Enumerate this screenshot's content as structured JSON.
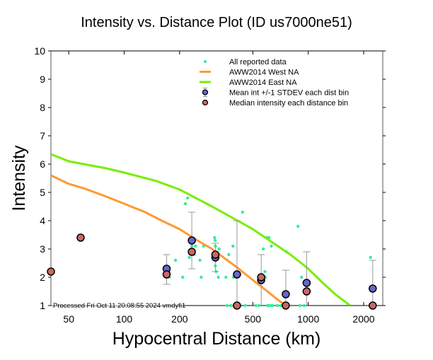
{
  "chart_data": {
    "type": "scatter",
    "title": "Intensity vs. Distance Plot (ID us7000ne51)",
    "xlabel": "Hypocentral Distance (km)",
    "ylabel": "Intensity",
    "xscale": "log",
    "xlim": [
      40,
      2540
    ],
    "ylim": [
      1,
      10
    ],
    "xticks": [
      50,
      100,
      200,
      500,
      1000,
      2000
    ],
    "xtick_labels": [
      "50",
      "100",
      "200",
      "500",
      "1000",
      "2000"
    ],
    "yticks": [
      1,
      2,
      3,
      4,
      5,
      6,
      7,
      8,
      9,
      10
    ],
    "ytick_labels": [
      "1",
      "2",
      "3",
      "4",
      "5",
      "6",
      "7",
      "8",
      "9",
      "10"
    ],
    "grid": false,
    "legend_position": "top-right",
    "annotation": "Processed Fri Oct 11 20:08:55 2024 vmdyfi1",
    "colors": {
      "all_data": "#33ee99",
      "west": "#ff9933",
      "east": "#77ee00",
      "mean": "#6666cc",
      "median": "#cc6666",
      "errorbar": "#999999"
    },
    "series": [
      {
        "name": "All reported data",
        "kind": "points",
        "points": [
          [
            58,
            3.4
          ],
          [
            175,
            2.2
          ],
          [
            176,
            2.0
          ],
          [
            190,
            2.6
          ],
          [
            208,
            2.0
          ],
          [
            215,
            4.6
          ],
          [
            221,
            4.8
          ],
          [
            226,
            2.7
          ],
          [
            233,
            3.1
          ],
          [
            240,
            2.8
          ],
          [
            244,
            3.1
          ],
          [
            258,
            2.6
          ],
          [
            262,
            2.0
          ],
          [
            270,
            3.1
          ],
          [
            310,
            3.4
          ],
          [
            312,
            3.3
          ],
          [
            313,
            3.1
          ],
          [
            313,
            2.6
          ],
          [
            313,
            2.4
          ],
          [
            316,
            2.2
          ],
          [
            316,
            2.8
          ],
          [
            325,
            2.0
          ],
          [
            328,
            3.0
          ],
          [
            357,
            2.0
          ],
          [
            362,
            1.0
          ],
          [
            370,
            2.8
          ],
          [
            380,
            1.0
          ],
          [
            390,
            3.1
          ],
          [
            392,
            2.0
          ],
          [
            408,
            2.0
          ],
          [
            414,
            1.0
          ],
          [
            440,
            4.3
          ],
          [
            455,
            1.0
          ],
          [
            520,
            1.0
          ],
          [
            540,
            1.0
          ],
          [
            557,
            2.0
          ],
          [
            567,
            2.0
          ],
          [
            570,
            3.0
          ],
          [
            582,
            2.2
          ],
          [
            585,
            2.0
          ],
          [
            597,
            3.4
          ],
          [
            600,
            1.0
          ],
          [
            610,
            1.0
          ],
          [
            612,
            3.4
          ],
          [
            626,
            1.0
          ],
          [
            630,
            3.1
          ],
          [
            640,
            1.0
          ],
          [
            680,
            1.0
          ],
          [
            710,
            1.0
          ],
          [
            752,
            1.0
          ],
          [
            760,
            2.9
          ],
          [
            780,
            1.0
          ],
          [
            880,
            3.8
          ],
          [
            900,
            1.0
          ],
          [
            920,
            2.0
          ],
          [
            950,
            1.0
          ],
          [
            2180,
            2.7
          ],
          [
            2240,
            1.0
          ]
        ]
      },
      {
        "name": "AWW2014 West NA",
        "kind": "line",
        "x": [
          40,
          50,
          60,
          80,
          100,
          130,
          160,
          200,
          250,
          300,
          400,
          500,
          600,
          700,
          760
        ],
        "y": [
          5.6,
          5.3,
          5.15,
          4.85,
          4.6,
          4.3,
          4.0,
          3.7,
          3.3,
          3.0,
          2.4,
          1.9,
          1.5,
          1.15,
          1.0
        ]
      },
      {
        "name": "AWW2014 East NA",
        "kind": "line",
        "x": [
          40,
          50,
          60,
          80,
          100,
          150,
          200,
          300,
          400,
          500,
          600,
          800,
          1000,
          1200,
          1400,
          1690
        ],
        "y": [
          6.35,
          6.1,
          6.0,
          5.85,
          5.7,
          5.4,
          5.1,
          4.5,
          4.05,
          3.7,
          3.35,
          2.8,
          2.3,
          1.8,
          1.4,
          1.0
        ]
      },
      {
        "name": "Mean int +/-1 STDEV each dist bin",
        "kind": "mean_with_errorbars",
        "x": [
          170,
          233,
          313,
          410,
          555,
          755,
          980,
          2240
        ],
        "y": [
          2.3,
          3.3,
          2.7,
          2.1,
          1.9,
          1.4,
          1.8,
          1.6
        ],
        "err_low": [
          1.75,
          2.3,
          2.2,
          1.0,
          1.0,
          1.0,
          1.0,
          1.0
        ],
        "err_high": [
          2.8,
          4.3,
          3.2,
          4.0,
          2.8,
          2.25,
          2.9,
          2.6
        ]
      },
      {
        "name": "Median intensity each distance bin",
        "kind": "median",
        "x": [
          40,
          58,
          170,
          233,
          313,
          410,
          555,
          755,
          980,
          2240
        ],
        "y": [
          2.2,
          3.4,
          2.1,
          2.9,
          2.8,
          1.0,
          2.0,
          1.0,
          1.5,
          1.0
        ]
      }
    ],
    "legend": [
      {
        "label": "All reported data",
        "symbol": "dot",
        "color_key": "all_data"
      },
      {
        "label": "AWW2014 West NA",
        "symbol": "line",
        "color_key": "west"
      },
      {
        "label": "AWW2014 East NA",
        "symbol": "line",
        "color_key": "east"
      },
      {
        "label": "Mean int +/-1 STDEV each dist bin",
        "symbol": "circle-errorbar",
        "color_key": "mean"
      },
      {
        "label": "Median intensity each distance bin",
        "symbol": "circle",
        "color_key": "median"
      }
    ]
  }
}
